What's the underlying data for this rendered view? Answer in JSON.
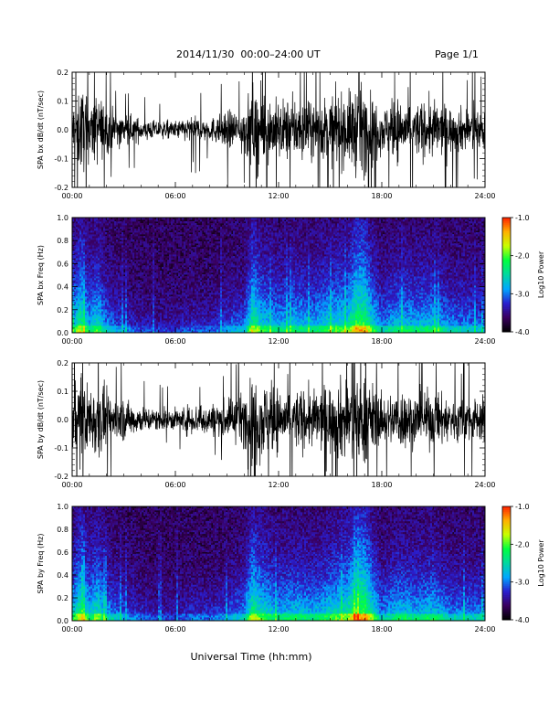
{
  "header": {
    "title": "2014/11/30  00:00–24:00 UT",
    "page": "Page 1/1"
  },
  "footer": {
    "xlabel": "Universal Time (hh:mm)"
  },
  "colors": {
    "trace": "#000000",
    "spectrogram_background": "#1a0022",
    "colormap": [
      "#000000",
      "#3a0060",
      "#2a1fd0",
      "#00a8ff",
      "#00d8a0",
      "#00ff40",
      "#c8ff00",
      "#ffb000",
      "#ff2000"
    ]
  },
  "chart_data": [
    {
      "type": "line",
      "ylabel": "SPA bx dB/dt (nT/sec)",
      "x_ticks": [
        "00:00",
        "06:00",
        "12:00",
        "18:00",
        "24:00"
      ],
      "y_ticks": [
        "-0.2",
        "-0.1",
        "0.0",
        "0.1",
        "0.2"
      ],
      "xlim": [
        0,
        24
      ],
      "ylim": [
        -0.2,
        0.2
      ],
      "envelope_x": [
        0,
        0.5,
        1,
        1.5,
        2,
        3,
        4,
        5,
        6,
        7,
        8,
        9,
        10,
        10.5,
        11,
        12,
        13,
        14,
        15,
        16,
        16.5,
        17,
        17.5,
        18,
        19,
        20,
        21,
        22,
        23,
        24
      ],
      "envelope_amp": [
        0.12,
        0.2,
        0.13,
        0.16,
        0.1,
        0.07,
        0.05,
        0.04,
        0.04,
        0.06,
        0.05,
        0.08,
        0.1,
        0.2,
        0.16,
        0.13,
        0.14,
        0.12,
        0.15,
        0.16,
        0.2,
        0.2,
        0.15,
        0.1,
        0.14,
        0.12,
        0.13,
        0.1,
        0.1,
        0.09
      ]
    },
    {
      "type": "heatmap",
      "ylabel": "SPA bx Freq (Hz)",
      "colorbar_label": "Log10 Power",
      "colorbar_ticks": [
        "-1.0",
        "-2.0",
        "-3.0",
        "-4.0"
      ],
      "colorbar_range": [
        -4.0,
        -1.0
      ],
      "x_ticks": [
        "00:00",
        "06:00",
        "12:00",
        "18:00",
        "24:00"
      ],
      "y_ticks": [
        "0.0",
        "0.2",
        "0.4",
        "0.6",
        "0.8",
        "1.0"
      ],
      "xlim": [
        0,
        24
      ],
      "ylim": [
        0,
        1.0
      ],
      "activity_x": [
        0,
        0.5,
        1,
        1.5,
        2,
        3,
        4,
        5,
        6,
        7,
        8,
        9,
        10,
        10.5,
        11,
        12,
        13,
        14,
        15,
        16,
        16.5,
        17,
        17.5,
        18,
        19,
        20,
        21,
        22,
        23,
        24
      ],
      "activity": [
        0.55,
        0.85,
        0.55,
        0.7,
        0.45,
        0.3,
        0.22,
        0.18,
        0.18,
        0.25,
        0.22,
        0.35,
        0.4,
        0.85,
        0.65,
        0.55,
        0.6,
        0.55,
        0.65,
        0.7,
        0.95,
        0.95,
        0.65,
        0.45,
        0.6,
        0.55,
        0.6,
        0.45,
        0.45,
        0.4
      ]
    },
    {
      "type": "line",
      "ylabel": "SPA by dB/dt (nT/sec)",
      "x_ticks": [
        "00:00",
        "06:00",
        "12:00",
        "18:00",
        "24:00"
      ],
      "y_ticks": [
        "-0.2",
        "-0.1",
        "0.0",
        "0.1",
        "0.2"
      ],
      "xlim": [
        0,
        24
      ],
      "ylim": [
        -0.2,
        0.2
      ],
      "envelope_x": [
        0,
        0.5,
        1,
        1.5,
        2,
        3,
        4,
        5,
        6,
        7,
        8,
        9,
        10,
        10.5,
        11,
        12,
        13,
        14,
        15,
        16,
        16.5,
        17,
        17.5,
        18,
        19,
        20,
        21,
        22,
        23,
        24
      ],
      "envelope_amp": [
        0.14,
        0.2,
        0.15,
        0.18,
        0.12,
        0.09,
        0.06,
        0.05,
        0.05,
        0.07,
        0.07,
        0.09,
        0.12,
        0.2,
        0.18,
        0.14,
        0.14,
        0.13,
        0.16,
        0.2,
        0.2,
        0.2,
        0.16,
        0.1,
        0.14,
        0.12,
        0.13,
        0.1,
        0.1,
        0.1
      ]
    },
    {
      "type": "heatmap",
      "ylabel": "SPA by Freq (Hz)",
      "colorbar_label": "Log10 Power",
      "colorbar_ticks": [
        "-1.0",
        "-2.0",
        "-3.0",
        "-4.0"
      ],
      "colorbar_range": [
        -4.0,
        -1.0
      ],
      "x_ticks": [
        "00:00",
        "06:00",
        "12:00",
        "18:00",
        "24:00"
      ],
      "y_ticks": [
        "0.0",
        "0.2",
        "0.4",
        "0.6",
        "0.8",
        "1.0"
      ],
      "xlim": [
        0,
        24
      ],
      "ylim": [
        0,
        1.0
      ],
      "activity_x": [
        0,
        0.5,
        1,
        1.5,
        2,
        3,
        4,
        5,
        6,
        7,
        8,
        9,
        10,
        10.5,
        11,
        12,
        13,
        14,
        15,
        16,
        16.5,
        17,
        17.5,
        18,
        19,
        20,
        21,
        22,
        23,
        24
      ],
      "activity": [
        0.6,
        0.85,
        0.6,
        0.75,
        0.5,
        0.35,
        0.25,
        0.2,
        0.2,
        0.28,
        0.25,
        0.35,
        0.45,
        0.85,
        0.7,
        0.55,
        0.6,
        0.55,
        0.65,
        0.75,
        1.0,
        1.0,
        0.7,
        0.45,
        0.6,
        0.55,
        0.6,
        0.45,
        0.45,
        0.45
      ]
    }
  ]
}
